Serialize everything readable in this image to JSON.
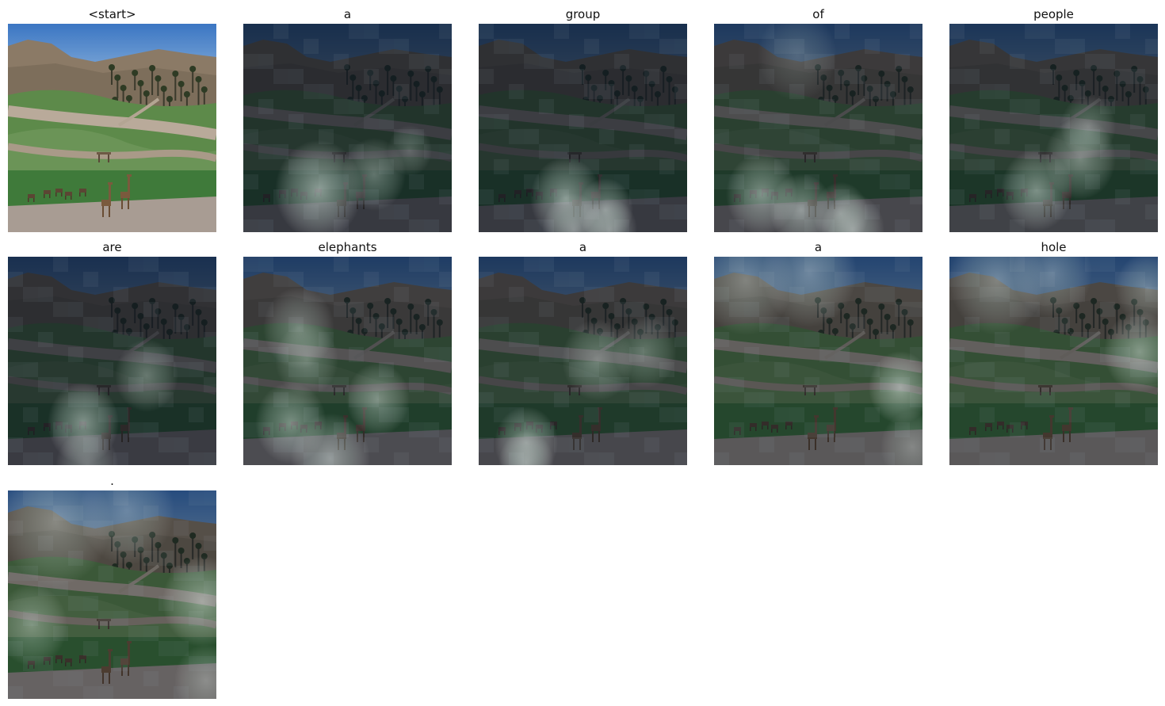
{
  "panels": [
    {
      "word": "<start>"
    },
    {
      "word": "a"
    },
    {
      "word": "group"
    },
    {
      "word": "of"
    },
    {
      "word": "people"
    },
    {
      "word": "are"
    },
    {
      "word": "elephants"
    },
    {
      "word": "a"
    },
    {
      "word": "a"
    },
    {
      "word": "hole"
    },
    {
      "word": "."
    }
  ]
}
